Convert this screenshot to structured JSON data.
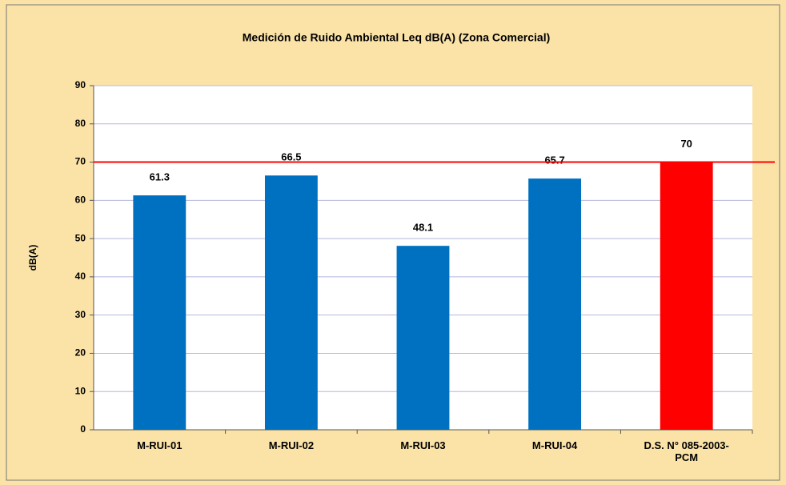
{
  "chart_data": {
    "type": "bar",
    "title": "Medición de Ruido Ambiental Leq dB(A)  (Zona Comercial)",
    "ylabel": "dB(A)",
    "categories": [
      "M-RUI-01",
      "M-RUI-02",
      "M-RUI-03",
      "M-RUI-04",
      "D.S. N° 085-2003-PCM"
    ],
    "values": [
      61.3,
      66.5,
      48.1,
      65.7,
      70
    ],
    "colors": [
      "#0070c0",
      "#0070c0",
      "#0070c0",
      "#0070c0",
      "#ff0000"
    ],
    "threshold": 70,
    "threshold_color": "#ff0000",
    "ylim": [
      0,
      90
    ],
    "yticks": [
      0,
      10,
      20,
      30,
      40,
      50,
      60,
      70,
      80,
      90
    ],
    "grid": true
  }
}
